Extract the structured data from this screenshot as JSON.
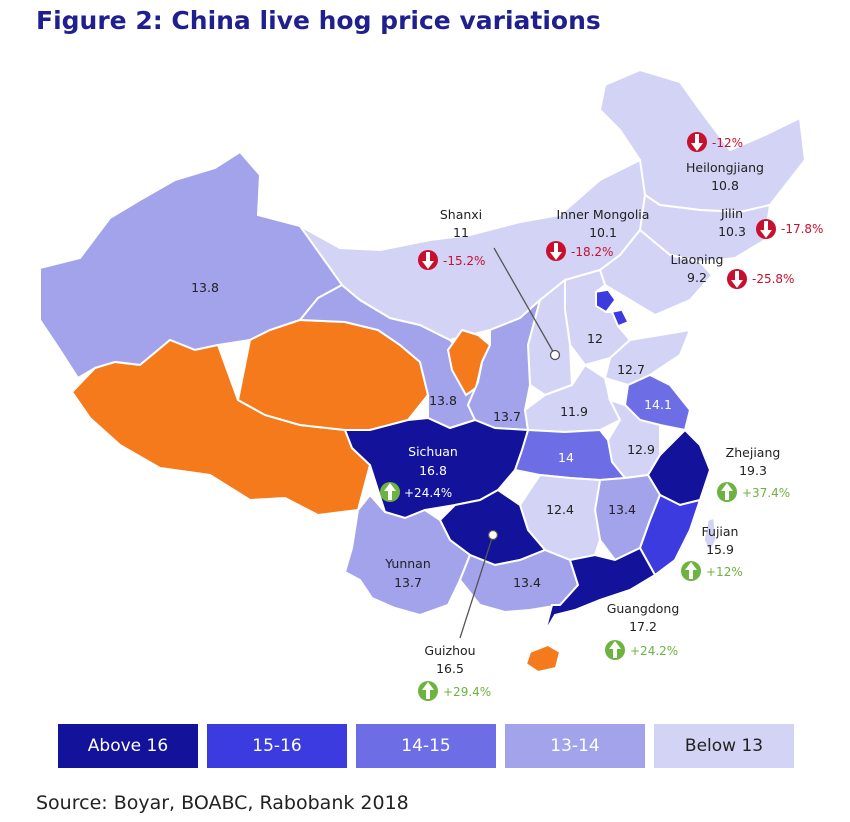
{
  "title": "Figure 2: China live hog price variations",
  "source": "Source: Boyar, BOABC, Rabobank 2018",
  "colors": {
    "above_16": "#12129a",
    "b15_16": "#3b3be0",
    "b14_15": "#6d6de6",
    "b13_14": "#a3a3ec",
    "below_13": "#d3d3f5",
    "no_data": "#f47a1c",
    "decrease": "#c8102e",
    "increase": "#6db33f"
  },
  "legend": [
    {
      "label": "Above 16",
      "color": "#12129a",
      "text_color": "#ffffff"
    },
    {
      "label": "15-16",
      "color": "#3b3be0",
      "text_color": "#ffffff"
    },
    {
      "label": "14-15",
      "color": "#6d6de6",
      "text_color": "#ffffff"
    },
    {
      "label": "13-14",
      "color": "#a3a3ec",
      "text_color": "#ffffff"
    },
    {
      "label": "Below 13",
      "color": "#d3d3f5",
      "text_color": "#222222"
    }
  ],
  "provinces": {
    "heilongjiang": {
      "name": "Heilongjiang",
      "price": "10.8",
      "change": "-12%",
      "direction": "down"
    },
    "jilin": {
      "name": "Jilin",
      "price": "10.3",
      "change": "-17.8%",
      "direction": "down"
    },
    "liaoning": {
      "name": "Liaoning",
      "price": "9.2",
      "change": "-25.8%",
      "direction": "down"
    },
    "inner_mongolia": {
      "name": "Inner Mongolia",
      "price": "10.1",
      "change": "-18.2%",
      "direction": "down"
    },
    "shanxi": {
      "name": "Shanxi",
      "price": "11",
      "change": "-15.2%",
      "direction": "down"
    },
    "sichuan": {
      "name": "Sichuan",
      "price": "16.8",
      "change": "+24.4%",
      "direction": "up"
    },
    "zhejiang": {
      "name": "Zhejiang",
      "price": "19.3",
      "change": "+37.4%",
      "direction": "up"
    },
    "fujian": {
      "name": "Fujian",
      "price": "15.9",
      "change": "+12%",
      "direction": "up"
    },
    "guangdong": {
      "name": "Guangdong",
      "price": "17.2",
      "change": "+24.2%",
      "direction": "up"
    },
    "guizhou": {
      "name": "Guizhou",
      "price": "16.5",
      "change": "+29.4%",
      "direction": "up"
    },
    "yunnan": {
      "name": "Yunnan",
      "price": "13.7"
    }
  },
  "unlabeled_values": {
    "xinjiang": "13.8",
    "gansu": "13.8",
    "shaanxi": "13.7",
    "hebei": "12",
    "shandong": "12.7",
    "henan": "11.9",
    "jiangsu": "14.1",
    "anhui": "12.9",
    "hubei": "14",
    "hunan": "12.4",
    "jiangxi": "13.4",
    "guangxi": "13.4"
  }
}
